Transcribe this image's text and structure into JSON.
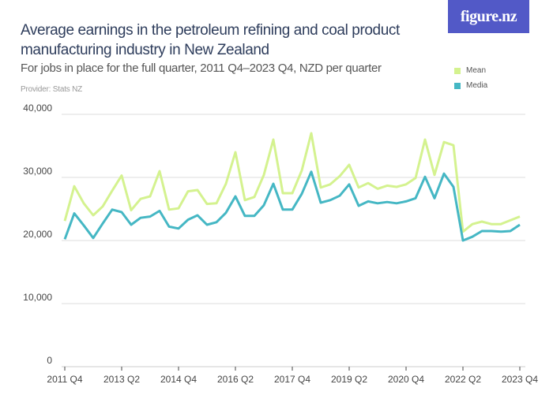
{
  "header": {
    "title": "Average earnings in the petroleum refining and coal product manufacturing industry in New Zealand",
    "subtitle": "For jobs in place for the full quarter, 2011 Q4–2023 Q4, NZD per quarter",
    "provider": "Provider: Stats NZ",
    "logo": "figure.nz"
  },
  "legend": [
    {
      "label": "Mean",
      "color": "#d4f28f"
    },
    {
      "label": "Media",
      "color": "#45b7c4"
    }
  ],
  "chart_data": {
    "type": "line",
    "title": "Average earnings in the petroleum refining and coal product manufacturing industry in New Zealand",
    "xlabel": "",
    "ylabel": "",
    "ylim": [
      0,
      40000
    ],
    "y_ticks": [
      "0",
      "10,000",
      "20,000",
      "30,000",
      "40,000"
    ],
    "y_tick_values": [
      0,
      10000,
      20000,
      30000,
      40000
    ],
    "x_tick_labels": [
      "2011 Q4",
      "2013 Q2",
      "2014 Q4",
      "2016 Q2",
      "2017 Q4",
      "2019 Q2",
      "2020 Q4",
      "2022 Q2",
      "2023 Q4"
    ],
    "x_start": "2011 Q4",
    "x_end": "2023 Q4",
    "grid": true,
    "legend_position": "top-right",
    "series": [
      {
        "name": "Mean",
        "color": "#d4f28f",
        "values": [
          23100,
          28600,
          25900,
          24000,
          25400,
          27900,
          30300,
          24800,
          26600,
          27000,
          31000,
          24900,
          25100,
          27800,
          28000,
          25800,
          25900,
          29000,
          34000,
          26400,
          26900,
          30400,
          36000,
          27500,
          27500,
          31100,
          37000,
          28400,
          28900,
          30200,
          32000,
          28400,
          29100,
          28200,
          28700,
          28500,
          28900,
          29900,
          36000,
          30400,
          35600,
          35100,
          21400,
          22600,
          23000,
          22600,
          22600,
          23200,
          23800
        ]
      },
      {
        "name": "Media",
        "color": "#45b7c4",
        "values": [
          20200,
          24300,
          22400,
          20400,
          22700,
          24900,
          24500,
          22500,
          23600,
          23800,
          24700,
          22200,
          21900,
          23300,
          24000,
          22500,
          22900,
          24400,
          27000,
          23900,
          23900,
          25600,
          29000,
          24900,
          24900,
          27400,
          30900,
          26000,
          26400,
          27100,
          28900,
          25500,
          26200,
          25900,
          26100,
          25900,
          26200,
          26700,
          30100,
          26700,
          30600,
          28500,
          20000,
          20600,
          21500,
          21500,
          21400,
          21500,
          22500
        ]
      }
    ]
  }
}
